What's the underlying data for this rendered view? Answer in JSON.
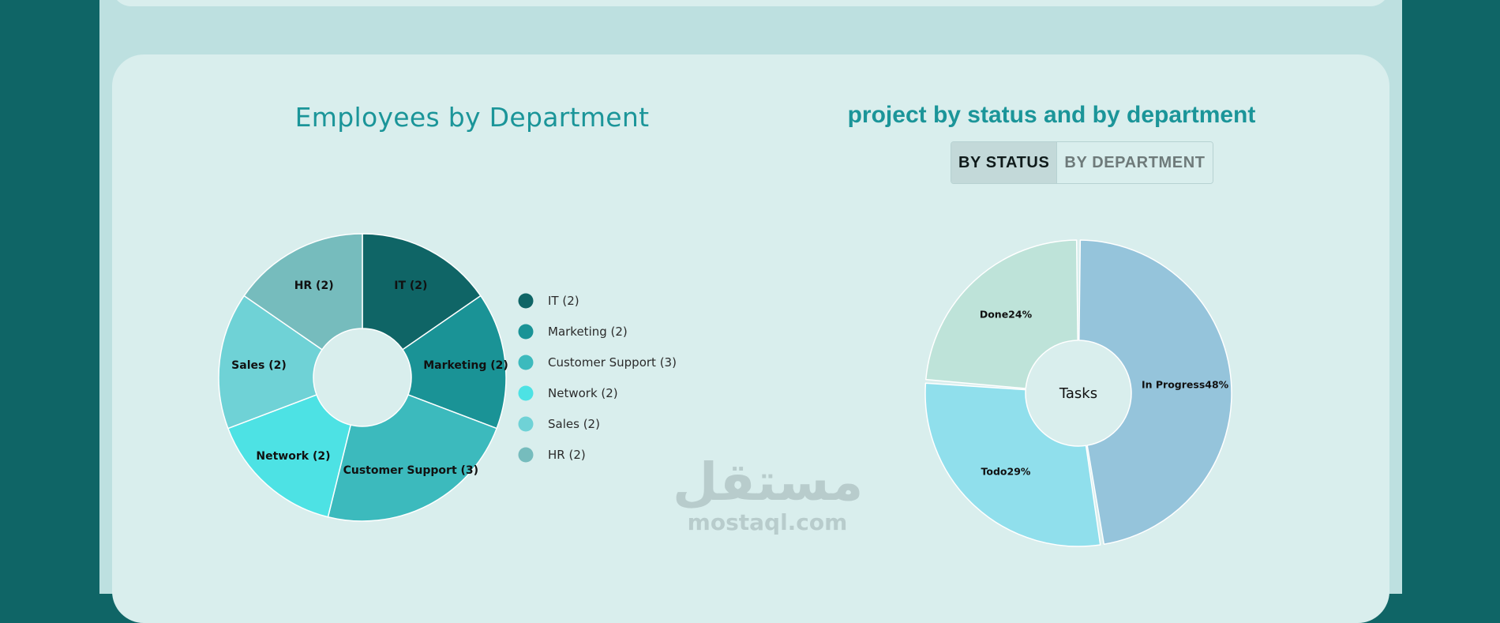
{
  "colors": {
    "accent": "#1b9599",
    "page_bg": "#0f6566",
    "card_bg": "#d9eeed"
  },
  "left_panel": {
    "title": "Employees by Department"
  },
  "right_panel": {
    "title": "project by status and by department",
    "toggle": {
      "by_status": "BY STATUS",
      "by_department": "BY DEPARTMENT",
      "active": "by_status"
    }
  },
  "watermark": {
    "arabic": "مستقل",
    "latin": "mostaql.com"
  },
  "chart_data": [
    {
      "type": "pie",
      "variant": "donut",
      "title": "Employees by Department",
      "legend_position": "right",
      "categories": [
        "IT",
        "Marketing",
        "Customer Support",
        "Network",
        "Sales",
        "HR"
      ],
      "values": [
        2,
        2,
        3,
        2,
        2,
        2
      ],
      "slice_labels": [
        "IT (2)",
        "Marketing (2)",
        "Customer Support (3)",
        "Network (2)",
        "Sales (2)",
        "HR (2)"
      ],
      "legend_labels": [
        "IT (2)",
        "Marketing (2)",
        "Customer Support (3)",
        "Network (2)",
        "Sales (2)",
        "HR (2)"
      ],
      "colors": [
        "#0f6566",
        "#1a9396",
        "#3cbabd",
        "#4de2e4",
        "#6fd2d6",
        "#76bcbd"
      ]
    },
    {
      "type": "pie",
      "variant": "donut",
      "center_label": "Tasks",
      "categories": [
        "In Progress",
        "Todo",
        "Done"
      ],
      "values": [
        48,
        29,
        24
      ],
      "slice_labels": [
        "In Progress48%",
        "Todo29%",
        "Done24%"
      ],
      "colors": [
        "#95c4db",
        "#90dfec",
        "#bee3d9"
      ]
    }
  ]
}
